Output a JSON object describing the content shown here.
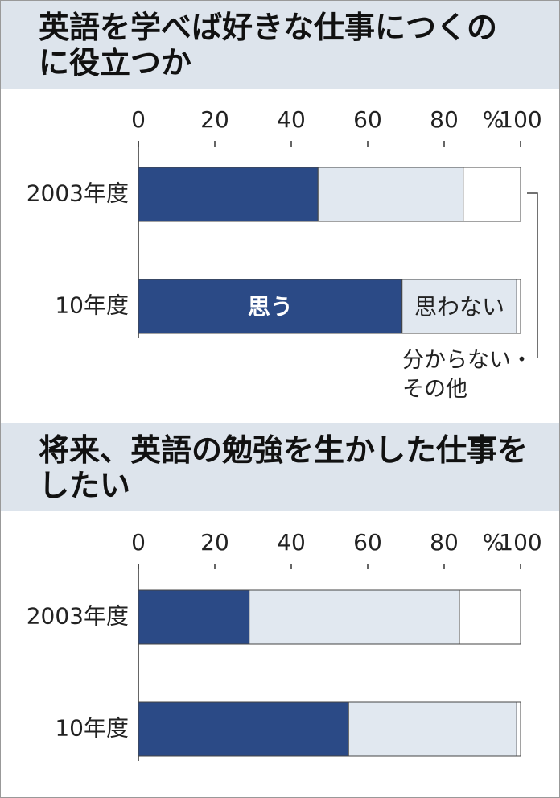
{
  "chart_data": [
    {
      "type": "stacked-bar",
      "title": "英語を学べば好きな仕事につくのに役立つか",
      "categories": [
        "2003年度",
        "10年度"
      ],
      "series": [
        {
          "name": "思う",
          "color": "#2b4a86",
          "values": [
            47,
            69
          ]
        },
        {
          "name": "思わない",
          "color": "#e1e8f0",
          "values": [
            38,
            30
          ]
        },
        {
          "name": "分からない・その他",
          "color": "#ffffff",
          "values": [
            15,
            1
          ]
        }
      ],
      "xlim": [
        0,
        100
      ],
      "xticks": [
        0,
        20,
        40,
        60,
        80,
        100
      ],
      "unit": "%"
    },
    {
      "type": "stacked-bar",
      "title": "将来、英語の勉強を生かした仕事をしたい",
      "categories": [
        "2003年度",
        "10年度"
      ],
      "series": [
        {
          "color": "#2b4a86",
          "values": [
            29,
            55
          ]
        },
        {
          "color": "#e1e8f0",
          "values": [
            55,
            44
          ]
        },
        {
          "color": "#ffffff",
          "values": [
            16,
            1
          ]
        }
      ],
      "xlim": [
        0,
        100
      ],
      "xticks": [
        0,
        20,
        40,
        60,
        80,
        100
      ],
      "unit": "%"
    }
  ]
}
